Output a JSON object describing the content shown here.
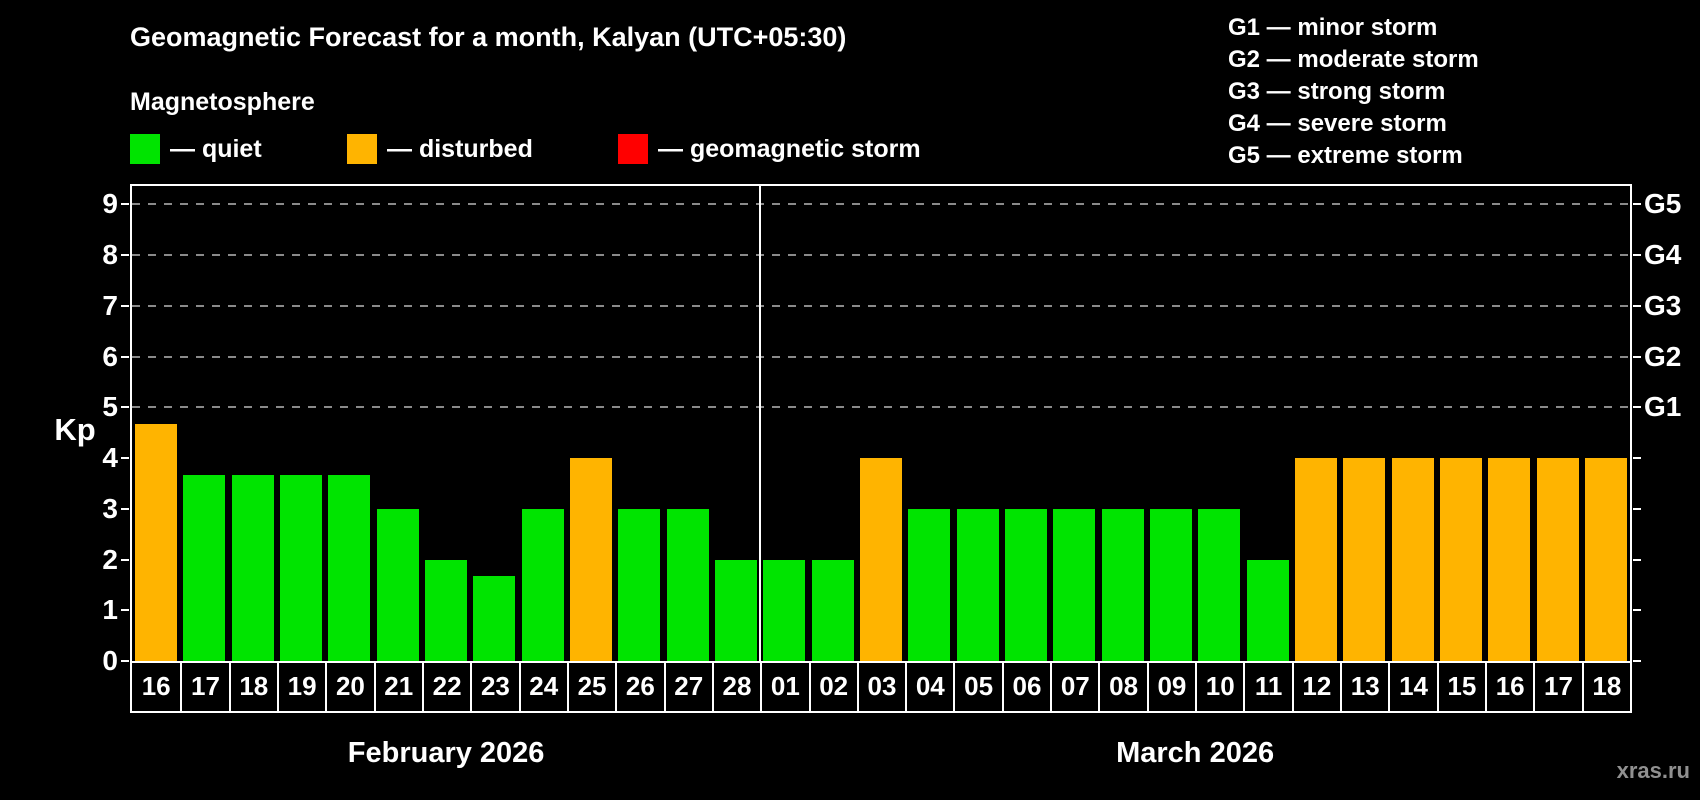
{
  "title": "Geomagnetic Forecast for a month, Kalyan (UTC+05:30)",
  "subtitle": "Magnetosphere",
  "kp_axis_label": "Kp",
  "watermark": "xras.ru",
  "legend": {
    "quiet": "— quiet",
    "disturbed": "— disturbed",
    "storm": "— geomagnetic storm"
  },
  "g_legend": [
    "G1 — minor storm",
    "G2 — moderate storm",
    "G3 — strong storm",
    "G4 — severe storm",
    "G5 — extreme storm"
  ],
  "colors": {
    "quiet": "#00e400",
    "disturbed": "#ffb400",
    "storm": "#ff0000",
    "background": "#000000",
    "grid": "#8a8a8a"
  },
  "chart_data": {
    "type": "bar",
    "title": "Geomagnetic Forecast for a month, Kalyan (UTC+05:30)",
    "ylabel": "Kp",
    "xlabel": "",
    "ylim": [
      0,
      9.36
    ],
    "yticks": [
      0,
      1,
      2,
      3,
      4,
      5,
      6,
      7,
      8,
      9
    ],
    "grid": "dashed at G levels",
    "g_levels": [
      {
        "label": "G1",
        "kp": 5
      },
      {
        "label": "G2",
        "kp": 6
      },
      {
        "label": "G3",
        "kp": 7
      },
      {
        "label": "G4",
        "kp": 8
      },
      {
        "label": "G5",
        "kp": 9
      }
    ],
    "months": [
      {
        "label": "February 2026",
        "days": [
          {
            "day": "16",
            "kp": 4.67,
            "status": "disturbed"
          },
          {
            "day": "17",
            "kp": 3.67,
            "status": "quiet"
          },
          {
            "day": "18",
            "kp": 3.67,
            "status": "quiet"
          },
          {
            "day": "19",
            "kp": 3.67,
            "status": "quiet"
          },
          {
            "day": "20",
            "kp": 3.67,
            "status": "quiet"
          },
          {
            "day": "21",
            "kp": 3.0,
            "status": "quiet"
          },
          {
            "day": "22",
            "kp": 2.0,
            "status": "quiet"
          },
          {
            "day": "23",
            "kp": 1.67,
            "status": "quiet"
          },
          {
            "day": "24",
            "kp": 3.0,
            "status": "quiet"
          },
          {
            "day": "25",
            "kp": 4.0,
            "status": "disturbed"
          },
          {
            "day": "26",
            "kp": 3.0,
            "status": "quiet"
          },
          {
            "day": "27",
            "kp": 3.0,
            "status": "quiet"
          },
          {
            "day": "28",
            "kp": 2.0,
            "status": "quiet"
          }
        ]
      },
      {
        "label": "March 2026",
        "days": [
          {
            "day": "01",
            "kp": 2.0,
            "status": "quiet"
          },
          {
            "day": "02",
            "kp": 2.0,
            "status": "quiet"
          },
          {
            "day": "03",
            "kp": 4.0,
            "status": "disturbed"
          },
          {
            "day": "04",
            "kp": 3.0,
            "status": "quiet"
          },
          {
            "day": "05",
            "kp": 3.0,
            "status": "quiet"
          },
          {
            "day": "06",
            "kp": 3.0,
            "status": "quiet"
          },
          {
            "day": "07",
            "kp": 3.0,
            "status": "quiet"
          },
          {
            "day": "08",
            "kp": 3.0,
            "status": "quiet"
          },
          {
            "day": "09",
            "kp": 3.0,
            "status": "quiet"
          },
          {
            "day": "10",
            "kp": 3.0,
            "status": "quiet"
          },
          {
            "day": "11",
            "kp": 2.0,
            "status": "quiet"
          },
          {
            "day": "12",
            "kp": 4.0,
            "status": "disturbed"
          },
          {
            "day": "13",
            "kp": 4.0,
            "status": "disturbed"
          },
          {
            "day": "14",
            "kp": 4.0,
            "status": "disturbed"
          },
          {
            "day": "15",
            "kp": 4.0,
            "status": "disturbed"
          },
          {
            "day": "16",
            "kp": 4.0,
            "status": "disturbed"
          },
          {
            "day": "17",
            "kp": 4.0,
            "status": "disturbed"
          },
          {
            "day": "18",
            "kp": 4.0,
            "status": "disturbed"
          }
        ]
      }
    ]
  }
}
